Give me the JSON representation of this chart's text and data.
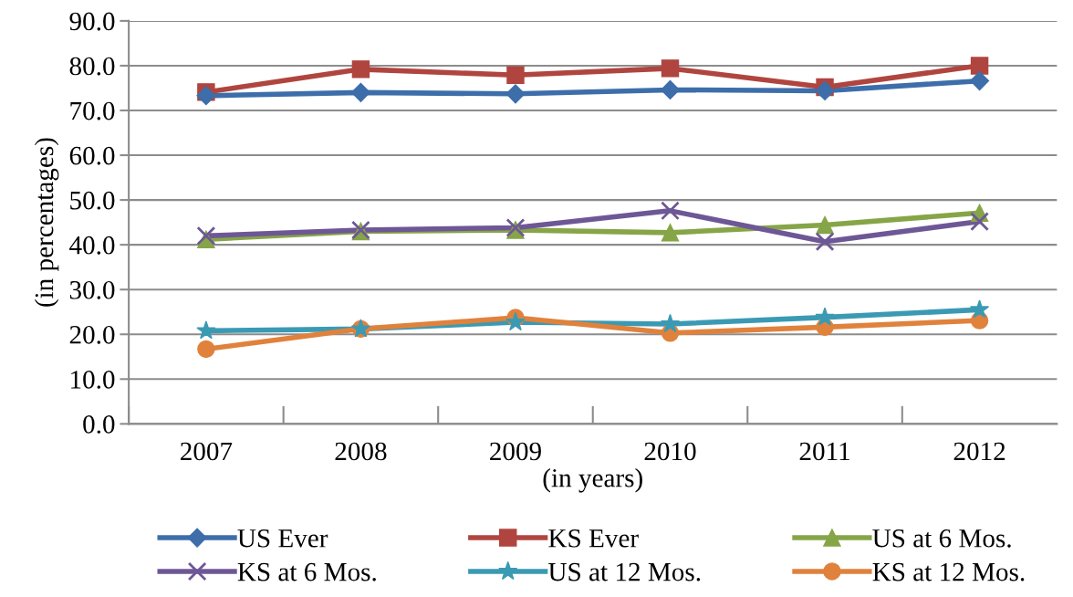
{
  "chart_data": {
    "type": "line",
    "xlabel": "(in years)",
    "ylabel": "(in percentages)",
    "categories": [
      "2007",
      "2008",
      "2009",
      "2010",
      "2011",
      "2012"
    ],
    "series": [
      {
        "name": "US Ever",
        "color": "#3d6eaa",
        "marker": "diamond",
        "values": [
          73.3,
          74.0,
          73.7,
          74.6,
          74.4,
          76.6
        ]
      },
      {
        "name": "KS Ever",
        "color": "#b0453f",
        "marker": "square",
        "values": [
          74.1,
          79.2,
          77.9,
          79.4,
          75.2,
          80.0
        ]
      },
      {
        "name": "US at 6 Mos.",
        "color": "#86a547",
        "marker": "triangle",
        "values": [
          41.2,
          43.0,
          43.3,
          42.7,
          44.4,
          47.1
        ]
      },
      {
        "name": "KS at 6 Mos.",
        "color": "#6e5796",
        "marker": "cross",
        "values": [
          42.0,
          43.3,
          43.8,
          47.6,
          40.7,
          45.2
        ]
      },
      {
        "name": "US at 12 Mos.",
        "color": "#3b9ab3",
        "marker": "star",
        "values": [
          20.8,
          21.2,
          22.7,
          22.3,
          23.8,
          25.5
        ]
      },
      {
        "name": "KS at 12 Mos.",
        "color": "#e0823c",
        "marker": "circle",
        "values": [
          16.7,
          21.2,
          23.7,
          20.3,
          21.6,
          23.1
        ]
      }
    ],
    "ylim": [
      0,
      90
    ],
    "yticks": [
      {
        "value": 0,
        "label": "0.0"
      },
      {
        "value": 10,
        "label": "10.0"
      },
      {
        "value": 20,
        "label": "20.0"
      },
      {
        "value": 30,
        "label": "30.0"
      },
      {
        "value": 40,
        "label": "40.0"
      },
      {
        "value": 50,
        "label": "50.0"
      },
      {
        "value": 60,
        "label": "60.0"
      },
      {
        "value": 70,
        "label": "70.0"
      },
      {
        "value": 80,
        "label": "80.0"
      },
      {
        "value": 90,
        "label": "90.0"
      }
    ],
    "grid": "y",
    "legend": "bottom"
  }
}
